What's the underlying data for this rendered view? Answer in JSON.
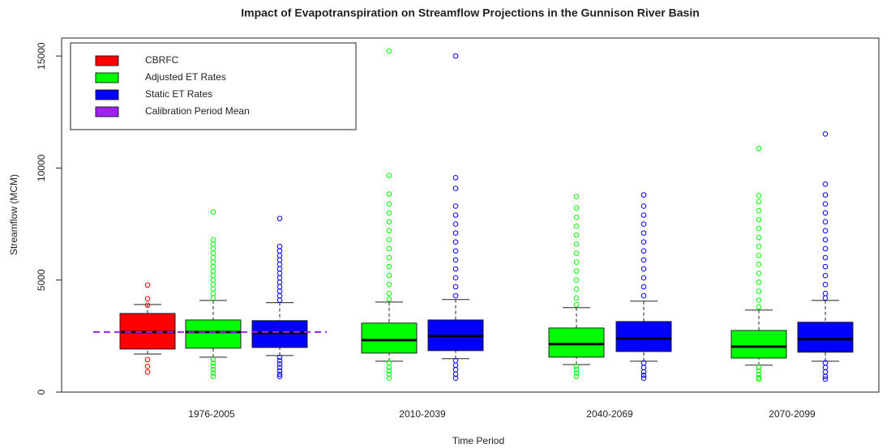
{
  "chart_data": {
    "type": "box",
    "title": "Impact of Evapotranspiration on Streamflow Projections in the Gunnison River Basin",
    "x_label": "Time Period",
    "y_label": "Streamflow (MCM)",
    "categories": [
      "1976-2005",
      "2010-2039",
      "2040-2069",
      "2070-2099"
    ],
    "ylim": [
      0,
      15800
    ],
    "yticks": [
      0,
      5000,
      10000,
      15000
    ],
    "legend_position": "top-left",
    "series": [
      {
        "name": "CBRFC",
        "color": "#ff0000",
        "values": [
          {
            "whislo": 1700,
            "q1": 1920,
            "med": 2680,
            "q3": 3510,
            "whishi": 3910,
            "fliers": [
              4780,
              4170,
              3880,
              1450,
              1150,
              900
            ]
          },
          null,
          null,
          null
        ]
      },
      {
        "name": "Adjusted ET Rates",
        "color": "#00ff00",
        "values": [
          {
            "whislo": 1560,
            "q1": 1960,
            "med": 2680,
            "q3": 3220,
            "whishi": 4090,
            "fliers": [
              8040,
              6800,
              6600,
              6400,
              6200,
              6000,
              5800,
              5600,
              5400,
              5200,
              5000,
              4800,
              4600,
              4400,
              4200,
              1450,
              1300,
              1150,
              1000,
              850,
              700
            ]
          },
          {
            "whislo": 1380,
            "q1": 1740,
            "med": 2320,
            "q3": 3080,
            "whishi": 4020,
            "fliers": [
              15220,
              9670,
              8840,
              8400,
              8000,
              7600,
              7200,
              6800,
              6400,
              6000,
              5600,
              5200,
              4800,
              4400,
              4150,
              1300,
              1100,
              950,
              800,
              620
            ]
          },
          {
            "whislo": 1230,
            "q1": 1560,
            "med": 2140,
            "q3": 2860,
            "whishi": 3770,
            "fliers": [
              8730,
              8220,
              7800,
              7400,
              7000,
              6600,
              6200,
              5800,
              5400,
              5000,
              4600,
              4200,
              3900,
              1150,
              1000,
              850,
              700
            ]
          },
          {
            "whislo": 1200,
            "q1": 1520,
            "med": 2030,
            "q3": 2750,
            "whishi": 3660,
            "fliers": [
              10870,
              8770,
              8500,
              8100,
              7700,
              7300,
              6900,
              6500,
              6100,
              5700,
              5300,
              4900,
              4500,
              4100,
              3800,
              1100,
              950,
              800,
              650,
              580
            ]
          }
        ]
      },
      {
        "name": "Static ET Rates",
        "color": "#0000ff",
        "values": [
          {
            "whislo": 1630,
            "q1": 1990,
            "med": 2640,
            "q3": 3190,
            "whishi": 3990,
            "fliers": [
              7750,
              6500,
              6300,
              6100,
              5900,
              5700,
              5500,
              5300,
              5100,
              4900,
              4700,
              4500,
              4300,
              4100,
              1550,
              1400,
              1250,
              1100,
              950,
              800,
              700
            ]
          },
          {
            "whislo": 1490,
            "q1": 1850,
            "med": 2500,
            "q3": 3220,
            "whishi": 4130,
            "fliers": [
              15000,
              9570,
              9090,
              8300,
              7900,
              7500,
              7100,
              6700,
              6300,
              5900,
              5500,
              5100,
              4700,
              4300,
              1400,
              1200,
              1000,
              800,
              620
            ]
          },
          {
            "whislo": 1380,
            "q1": 1810,
            "med": 2390,
            "q3": 3150,
            "whishi": 4060,
            "fliers": [
              8800,
              8300,
              7900,
              7500,
              7100,
              6700,
              6300,
              5900,
              5500,
              5100,
              4700,
              4300,
              1300,
              1100,
              900,
              750,
              620
            ]
          },
          {
            "whislo": 1380,
            "q1": 1780,
            "med": 2360,
            "q3": 3120,
            "whishi": 4090,
            "fliers": [
              11520,
              9280,
              8800,
              8400,
              8000,
              7600,
              7200,
              6800,
              6400,
              6000,
              5600,
              5200,
              4800,
              4400,
              4200,
              1300,
              1100,
              900,
              700,
              580
            ]
          }
        ]
      }
    ],
    "reference_line": {
      "name": "Calibration Period Mean",
      "color": "#a020f0",
      "value": 2680,
      "category": 0
    }
  }
}
